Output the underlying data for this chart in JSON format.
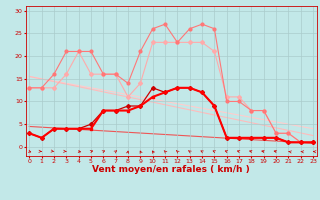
{
  "background_color": "#c2e8e8",
  "grid_color": "#aacccc",
  "xlabel": "Vent moyen/en rafales ( km/h )",
  "xlabel_color": "#cc0000",
  "xlabel_fontsize": 6.5,
  "xticks": [
    0,
    1,
    2,
    3,
    4,
    5,
    6,
    7,
    8,
    9,
    10,
    11,
    12,
    13,
    14,
    15,
    16,
    17,
    18,
    19,
    20,
    21,
    22,
    23
  ],
  "yticks": [
    0,
    5,
    10,
    15,
    20,
    25,
    30
  ],
  "ylim": [
    -2,
    31
  ],
  "xlim": [
    -0.3,
    23.3
  ],
  "line_light1_x": [
    0,
    1,
    2,
    3,
    4,
    5,
    6,
    7,
    8,
    9,
    10,
    11,
    12,
    13,
    14,
    15,
    16,
    17,
    18,
    19,
    20,
    21,
    22,
    23
  ],
  "line_light1_y": [
    13,
    13,
    13,
    16,
    21,
    16,
    16,
    16,
    11,
    14,
    23,
    23,
    23,
    23,
    23,
    21,
    11,
    11,
    8,
    8,
    3,
    3,
    1,
    1
  ],
  "line_light1_color": "#ffaaaa",
  "line_light1_marker": "D",
  "line_light1_markersize": 2,
  "line_light1_linewidth": 0.8,
  "line_light2_x": [
    0,
    1,
    2,
    3,
    4,
    5,
    6,
    7,
    8,
    9,
    10,
    11,
    12,
    13,
    14,
    15,
    16,
    17,
    18,
    19,
    20,
    21,
    22,
    23
  ],
  "line_light2_y": [
    13,
    13,
    16,
    21,
    21,
    21,
    16,
    16,
    14,
    21,
    26,
    27,
    23,
    26,
    27,
    26,
    10,
    10,
    8,
    8,
    3,
    3,
    1,
    1
  ],
  "line_light2_color": "#ff7777",
  "line_light2_marker": "o",
  "line_light2_markersize": 2,
  "line_light2_linewidth": 0.8,
  "line_dark1_x": [
    0,
    1,
    2,
    3,
    4,
    5,
    6,
    7,
    8,
    9,
    10,
    11,
    12,
    13,
    14,
    15,
    16,
    17,
    18,
    19,
    20,
    21,
    22,
    23
  ],
  "line_dark1_y": [
    3,
    2,
    4,
    4,
    4,
    5,
    8,
    8,
    9,
    9,
    13,
    12,
    13,
    13,
    12,
    9,
    2,
    2,
    2,
    2,
    2,
    1,
    1,
    1
  ],
  "line_dark1_color": "#cc0000",
  "line_dark1_marker": "D",
  "line_dark1_markersize": 2,
  "line_dark1_linewidth": 0.9,
  "line_dark2_x": [
    0,
    1,
    2,
    3,
    4,
    5,
    6,
    7,
    8,
    9,
    10,
    11,
    12,
    13,
    14,
    15,
    16,
    17,
    18,
    19,
    20,
    21,
    22,
    23
  ],
  "line_dark2_y": [
    3,
    2,
    4,
    4,
    4,
    4,
    8,
    8,
    8,
    9,
    11,
    12,
    13,
    13,
    12,
    9,
    2,
    2,
    2,
    2,
    2,
    1,
    1,
    1
  ],
  "line_dark2_color": "#ff0000",
  "line_dark2_marker": "s",
  "line_dark2_markersize": 1.5,
  "line_dark2_linewidth": 1.5,
  "trend1_x": [
    0,
    23
  ],
  "trend1_y": [
    15.5,
    4.0
  ],
  "trend1_color": "#ffcccc",
  "trend1_linewidth": 0.8,
  "trend2_x": [
    0,
    23
  ],
  "trend2_y": [
    15.5,
    2.5
  ],
  "trend2_color": "#ffbbbb",
  "trend2_linewidth": 0.8,
  "trend3_x": [
    0,
    23
  ],
  "trend3_y": [
    4.5,
    0.8
  ],
  "trend3_color": "#ee5555",
  "trend3_linewidth": 0.8,
  "arrow_angles": [
    45,
    80,
    70,
    80,
    60,
    130,
    140,
    150,
    175,
    190,
    195,
    200,
    205,
    210,
    215,
    220,
    225,
    230,
    235,
    240,
    240,
    245,
    250,
    255
  ]
}
